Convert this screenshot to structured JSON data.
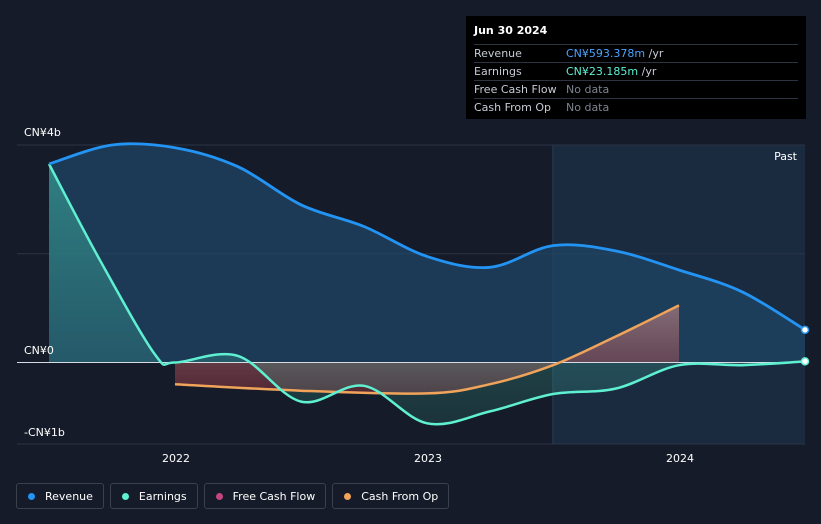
{
  "tooltip": {
    "date": "Jun 30 2024",
    "rows": [
      {
        "label": "Revenue",
        "value": "CN¥593.378m",
        "unit": " /yr",
        "color": "#4aa3ff"
      },
      {
        "label": "Earnings",
        "value": "CN¥23.185m",
        "unit": " /yr",
        "color": "#5ff0d2"
      },
      {
        "label": "Free Cash Flow",
        "value": "No data",
        "unit": "",
        "color": "#7d838f"
      },
      {
        "label": "Cash From Op",
        "value": "No data",
        "unit": "",
        "color": "#7d838f"
      }
    ]
  },
  "legend": [
    {
      "label": "Revenue",
      "color": "#2394f3"
    },
    {
      "label": "Earnings",
      "color": "#5ff0d2"
    },
    {
      "label": "Free Cash Flow",
      "color": "#c5467e"
    },
    {
      "label": "Cash From Op",
      "color": "#f0a35a"
    }
  ],
  "chart_data": {
    "type": "area",
    "y_tick_labels": [
      "CN¥4b",
      "CN¥0",
      "-CN¥1b"
    ],
    "x_tick_labels": [
      "2022",
      "2023",
      "2024"
    ],
    "past_label": "Past",
    "ylim": [
      -1.5,
      4
    ],
    "xlim": [
      2021.5,
      2024.5
    ],
    "past_region_start": 2023.5,
    "series": [
      {
        "name": "Revenue",
        "color": "#2394f3",
        "points": [
          [
            2021.5,
            3.65
          ],
          [
            2021.75,
            4.0
          ],
          [
            2022.0,
            3.95
          ],
          [
            2022.25,
            3.6
          ],
          [
            2022.5,
            2.9
          ],
          [
            2022.75,
            2.5
          ],
          [
            2023.0,
            1.95
          ],
          [
            2023.25,
            1.75
          ],
          [
            2023.5,
            2.15
          ],
          [
            2023.75,
            2.05
          ],
          [
            2024.0,
            1.7
          ],
          [
            2024.25,
            1.3
          ],
          [
            2024.5,
            0.6
          ]
        ]
      },
      {
        "name": "Earnings",
        "color": "#5ff0d2",
        "points": [
          [
            2021.5,
            3.65
          ],
          [
            2021.7,
            1.9
          ],
          [
            2021.92,
            0.15
          ],
          [
            2022.0,
            0.0
          ],
          [
            2022.25,
            0.12
          ],
          [
            2022.5,
            -0.72
          ],
          [
            2022.75,
            -0.43
          ],
          [
            2023.0,
            -1.12
          ],
          [
            2023.25,
            -0.9
          ],
          [
            2023.5,
            -0.58
          ],
          [
            2023.75,
            -0.48
          ],
          [
            2024.0,
            -0.05
          ],
          [
            2024.25,
            -0.05
          ],
          [
            2024.5,
            0.02
          ]
        ]
      },
      {
        "name": "Cash From Op",
        "color": "#f0a35a",
        "points": [
          [
            2022.0,
            -0.4
          ],
          [
            2022.5,
            -0.52
          ],
          [
            2023.0,
            -0.57
          ],
          [
            2023.25,
            -0.4
          ],
          [
            2023.5,
            -0.05
          ],
          [
            2023.75,
            0.48
          ],
          [
            2024.0,
            1.05
          ]
        ]
      }
    ]
  }
}
